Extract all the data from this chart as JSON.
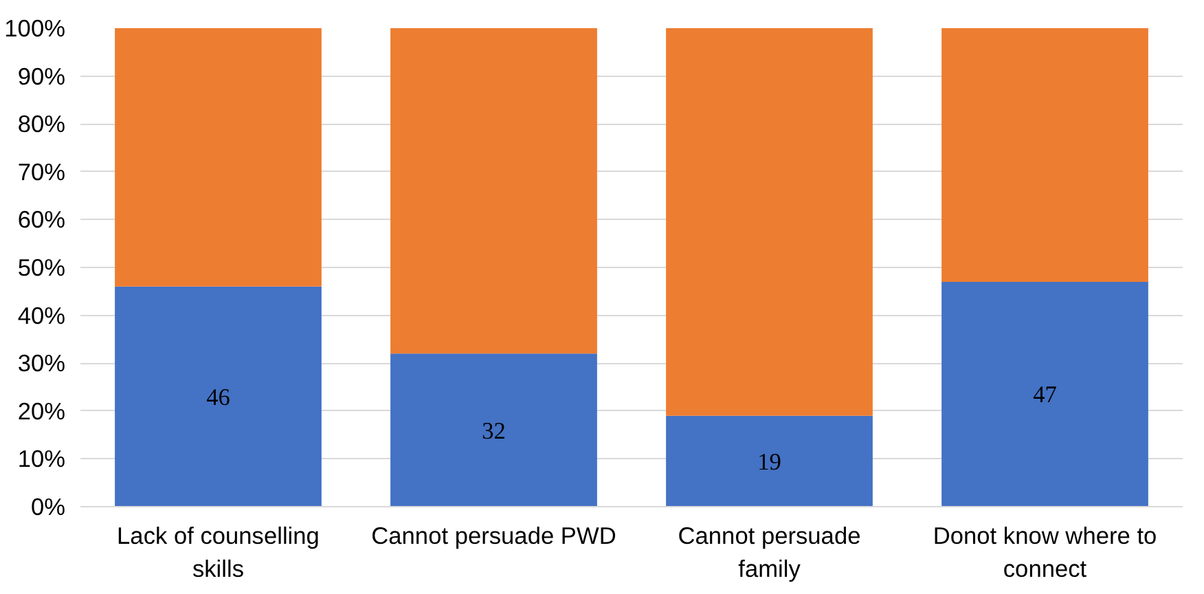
{
  "chart_data": {
    "type": "bar",
    "stacked": true,
    "categories": [
      "Lack of counselling skills",
      "Cannot persuade PWD",
      "Cannot persuade family",
      "Donot know where to connect"
    ],
    "series": [
      {
        "color": "#4472c4",
        "values": [
          46,
          32,
          19,
          47
        ],
        "value_labels": [
          "46",
          "32",
          "19",
          "47"
        ]
      },
      {
        "color": "#ed7d31",
        "values": [
          54,
          68,
          81,
          53
        ]
      }
    ],
    "ylim": [
      0,
      100
    ],
    "yticks": [
      {
        "value": 0,
        "label": "0%"
      },
      {
        "value": 10,
        "label": "10%"
      },
      {
        "value": 20,
        "label": "20%"
      },
      {
        "value": 30,
        "label": "30%"
      },
      {
        "value": 40,
        "label": "40%"
      },
      {
        "value": 50,
        "label": "50%"
      },
      {
        "value": 60,
        "label": "60%"
      },
      {
        "value": 70,
        "label": "70%"
      },
      {
        "value": 80,
        "label": "80%"
      },
      {
        "value": 90,
        "label": "90%"
      },
      {
        "value": 100,
        "label": "100%"
      }
    ],
    "grid": "y"
  }
}
